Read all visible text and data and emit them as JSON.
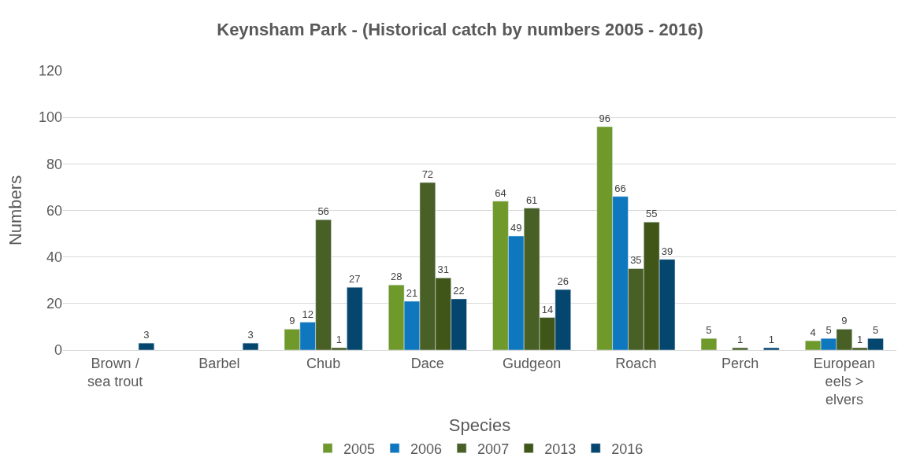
{
  "chart_data": {
    "type": "bar",
    "title": "Keynsham Park - (Historical catch by numbers 2005 - 2016)",
    "xlabel": "Species",
    "ylabel": "Numbers",
    "categories": [
      "Brown / sea trout",
      "Barbel",
      "Chub",
      "Dace",
      "Gudgeon",
      "Roach",
      "Perch",
      "European eels > elvers"
    ],
    "series": [
      {
        "name": "2005",
        "color": "#70992c",
        "values": [
          null,
          null,
          9,
          28,
          64,
          96,
          5,
          4
        ]
      },
      {
        "name": "2006",
        "color": "#0e77bd",
        "values": [
          null,
          null,
          12,
          21,
          49,
          66,
          null,
          5
        ]
      },
      {
        "name": "2007",
        "color": "#485f26",
        "values": [
          null,
          null,
          56,
          72,
          61,
          35,
          1,
          9
        ]
      },
      {
        "name": "2013",
        "color": "#3f5618",
        "values": [
          null,
          null,
          1,
          31,
          14,
          55,
          null,
          1
        ]
      },
      {
        "name": "2016",
        "color": "#05466e",
        "values": [
          3,
          3,
          27,
          22,
          26,
          39,
          1,
          5
        ]
      }
    ],
    "ylim": [
      0,
      120
    ],
    "yticks": [
      0,
      20,
      40,
      60,
      80,
      100,
      120
    ],
    "grid": "y",
    "legend": "bottom",
    "data_labels": true
  }
}
